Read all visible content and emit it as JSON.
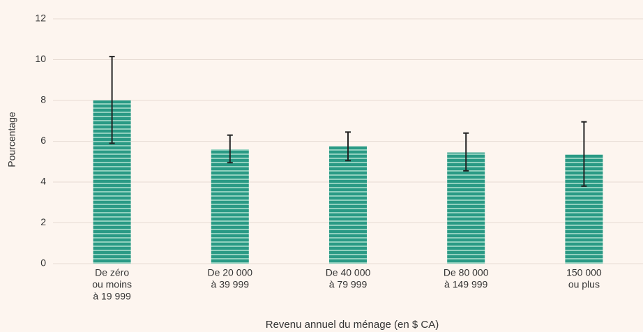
{
  "chart_data": {
    "type": "bar",
    "x_label": "Revenu annuel du ménage (en $ CA)",
    "y_label": "Pourcentage",
    "categories": [
      [
        "De zéro",
        "ou moins",
        "à 19 999"
      ],
      [
        "De 20 000",
        "à 39 999"
      ],
      [
        "De 40 000",
        "à 79 999"
      ],
      [
        "De 80 000",
        "à 149 999"
      ],
      [
        "150 000",
        "ou plus"
      ]
    ],
    "values": [
      8.0,
      5.6,
      5.75,
      5.45,
      5.35
    ],
    "lower": [
      5.9,
      4.95,
      5.05,
      4.55,
      3.8
    ],
    "upper": [
      10.15,
      6.3,
      6.45,
      6.4,
      6.95
    ],
    "color": "#2a9a85",
    "ylim": [
      0,
      12
    ],
    "yticks": [
      0,
      2,
      4,
      6,
      8,
      10,
      12
    ],
    "grid": true
  }
}
